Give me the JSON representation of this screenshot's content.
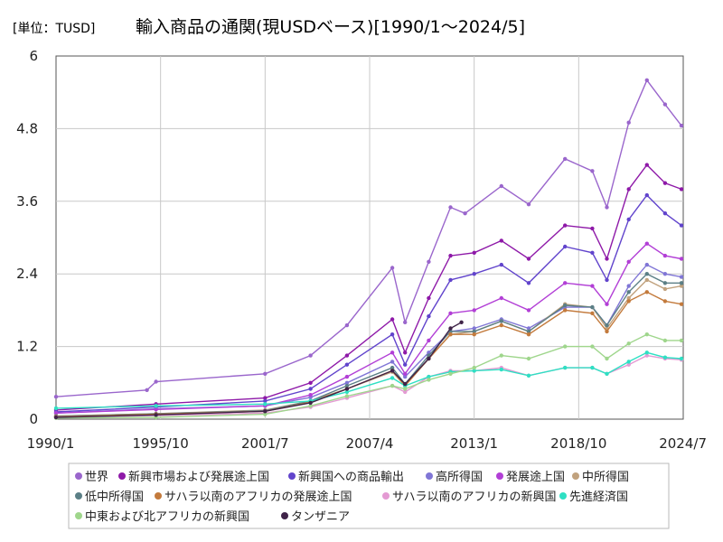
{
  "unit_label": "[単位：TUSD]",
  "chart_data": {
    "type": "line",
    "title": "輸入商品の通関(現USDベース)[1990/1～2024/5]",
    "xlabel": "",
    "ylabel": "",
    "x_range": [
      1990.0,
      2024.5
    ],
    "ylim": [
      0,
      6
    ],
    "x_ticks": [
      "1990/1",
      "1995/10",
      "2001/7",
      "2007/4",
      "2013/1",
      "2018/10",
      "2024/7"
    ],
    "y_ticks": [
      "0",
      "1.2",
      "2.4",
      "3.6",
      "4.8",
      "6"
    ],
    "grid": true,
    "legend_position": "bottom",
    "series": [
      {
        "name": "世界",
        "color": "#9a66cc",
        "points": [
          [
            1990.0,
            0.37
          ],
          [
            1995.0,
            0.48
          ],
          [
            1995.5,
            0.62
          ],
          [
            2001.5,
            0.75
          ],
          [
            2004.0,
            1.05
          ],
          [
            2006.0,
            1.55
          ],
          [
            2008.5,
            2.5
          ],
          [
            2009.2,
            1.6
          ],
          [
            2010.5,
            2.6
          ],
          [
            2011.7,
            3.5
          ],
          [
            2012.5,
            3.4
          ],
          [
            2014.5,
            3.85
          ],
          [
            2016.0,
            3.55
          ],
          [
            2018.0,
            4.3
          ],
          [
            2019.5,
            4.1
          ],
          [
            2020.3,
            3.5
          ],
          [
            2021.5,
            4.9
          ],
          [
            2022.5,
            5.6
          ],
          [
            2023.5,
            5.2
          ],
          [
            2024.4,
            4.85
          ]
        ]
      },
      {
        "name": "新興市場および発展途上国",
        "color": "#8e19a8",
        "points": [
          [
            1990.0,
            0.15
          ],
          [
            1995.5,
            0.25
          ],
          [
            2001.5,
            0.35
          ],
          [
            2004.0,
            0.6
          ],
          [
            2006.0,
            1.05
          ],
          [
            2008.5,
            1.65
          ],
          [
            2009.2,
            1.1
          ],
          [
            2010.5,
            2.0
          ],
          [
            2011.7,
            2.7
          ],
          [
            2013.0,
            2.75
          ],
          [
            2014.5,
            2.95
          ],
          [
            2016.0,
            2.65
          ],
          [
            2018.0,
            3.2
          ],
          [
            2019.5,
            3.15
          ],
          [
            2020.3,
            2.65
          ],
          [
            2021.5,
            3.8
          ],
          [
            2022.5,
            4.2
          ],
          [
            2023.5,
            3.9
          ],
          [
            2024.4,
            3.8
          ]
        ]
      },
      {
        "name": "新興国への商品輸出",
        "color": "#6144cc",
        "points": [
          [
            1990.0,
            0.12
          ],
          [
            1995.5,
            0.2
          ],
          [
            2001.5,
            0.3
          ],
          [
            2004.0,
            0.5
          ],
          [
            2006.0,
            0.9
          ],
          [
            2008.5,
            1.4
          ],
          [
            2009.2,
            0.9
          ],
          [
            2010.5,
            1.7
          ],
          [
            2011.7,
            2.3
          ],
          [
            2013.0,
            2.4
          ],
          [
            2014.5,
            2.55
          ],
          [
            2016.0,
            2.25
          ],
          [
            2018.0,
            2.85
          ],
          [
            2019.5,
            2.75
          ],
          [
            2020.3,
            2.3
          ],
          [
            2021.5,
            3.3
          ],
          [
            2022.5,
            3.7
          ],
          [
            2023.5,
            3.4
          ],
          [
            2024.4,
            3.2
          ]
        ]
      },
      {
        "name": "高所得国",
        "color": "#8076d6",
        "points": [
          [
            1990.0,
            0.1
          ],
          [
            1995.5,
            0.17
          ],
          [
            2001.5,
            0.22
          ],
          [
            2004.0,
            0.36
          ],
          [
            2006.0,
            0.6
          ],
          [
            2008.5,
            0.95
          ],
          [
            2009.2,
            0.7
          ],
          [
            2010.5,
            1.1
          ],
          [
            2011.7,
            1.45
          ],
          [
            2013.0,
            1.5
          ],
          [
            2014.5,
            1.65
          ],
          [
            2016.0,
            1.5
          ],
          [
            2018.0,
            1.85
          ],
          [
            2019.5,
            1.85
          ],
          [
            2020.3,
            1.55
          ],
          [
            2021.5,
            2.2
          ],
          [
            2022.5,
            2.55
          ],
          [
            2023.5,
            2.4
          ],
          [
            2024.4,
            2.35
          ]
        ]
      },
      {
        "name": "発展途上国",
        "color": "#b23fd6",
        "points": [
          [
            1990.0,
            0.1
          ],
          [
            1995.5,
            0.16
          ],
          [
            2001.5,
            0.22
          ],
          [
            2004.0,
            0.4
          ],
          [
            2006.0,
            0.7
          ],
          [
            2008.5,
            1.1
          ],
          [
            2009.2,
            0.75
          ],
          [
            2010.5,
            1.3
          ],
          [
            2011.7,
            1.75
          ],
          [
            2013.0,
            1.8
          ],
          [
            2014.5,
            2.0
          ],
          [
            2016.0,
            1.8
          ],
          [
            2018.0,
            2.25
          ],
          [
            2019.5,
            2.2
          ],
          [
            2020.3,
            1.9
          ],
          [
            2021.5,
            2.6
          ],
          [
            2022.5,
            2.9
          ],
          [
            2023.5,
            2.7
          ],
          [
            2024.4,
            2.65
          ]
        ]
      },
      {
        "name": "中所得国",
        "color": "#c1a27e",
        "points": [
          [
            1990.0,
            0.05
          ],
          [
            1995.5,
            0.09
          ],
          [
            2001.5,
            0.15
          ],
          [
            2004.0,
            0.3
          ],
          [
            2006.0,
            0.5
          ],
          [
            2008.5,
            0.78
          ],
          [
            2009.2,
            0.55
          ],
          [
            2010.5,
            1.0
          ],
          [
            2011.7,
            1.4
          ],
          [
            2013.0,
            1.45
          ],
          [
            2014.5,
            1.62
          ],
          [
            2016.0,
            1.45
          ],
          [
            2018.0,
            1.9
          ],
          [
            2019.5,
            1.85
          ],
          [
            2020.3,
            1.5
          ],
          [
            2021.5,
            2.0
          ],
          [
            2022.5,
            2.3
          ],
          [
            2023.5,
            2.15
          ],
          [
            2024.4,
            2.2
          ]
        ]
      },
      {
        "name": "低中所得国",
        "color": "#5b7f86",
        "points": [
          [
            1990.0,
            0.05
          ],
          [
            1995.5,
            0.09
          ],
          [
            2001.5,
            0.14
          ],
          [
            2004.0,
            0.3
          ],
          [
            2006.0,
            0.55
          ],
          [
            2008.5,
            0.85
          ],
          [
            2009.2,
            0.58
          ],
          [
            2010.5,
            1.05
          ],
          [
            2011.7,
            1.45
          ],
          [
            2013.0,
            1.45
          ],
          [
            2014.5,
            1.62
          ],
          [
            2016.0,
            1.45
          ],
          [
            2018.0,
            1.88
          ],
          [
            2019.5,
            1.85
          ],
          [
            2020.3,
            1.55
          ],
          [
            2021.5,
            2.1
          ],
          [
            2022.5,
            2.4
          ],
          [
            2023.5,
            2.25
          ],
          [
            2024.4,
            2.25
          ]
        ]
      },
      {
        "name": "サハラ以南のアフリカの発展途上国",
        "color": "#c37a3c",
        "points": [
          [
            1990.0,
            0.04
          ],
          [
            1995.5,
            0.08
          ],
          [
            2001.5,
            0.13
          ],
          [
            2004.0,
            0.28
          ],
          [
            2006.0,
            0.5
          ],
          [
            2008.5,
            0.8
          ],
          [
            2009.2,
            0.55
          ],
          [
            2010.5,
            1.0
          ],
          [
            2011.7,
            1.4
          ],
          [
            2013.0,
            1.4
          ],
          [
            2014.5,
            1.55
          ],
          [
            2016.0,
            1.4
          ],
          [
            2018.0,
            1.8
          ],
          [
            2019.5,
            1.75
          ],
          [
            2020.3,
            1.45
          ],
          [
            2021.5,
            1.95
          ],
          [
            2022.5,
            2.1
          ],
          [
            2023.5,
            1.95
          ],
          [
            2024.4,
            1.9
          ]
        ]
      },
      {
        "name": "サハラ以南のアフリカの新興国",
        "color": "#e49ad3",
        "points": [
          [
            1990.0,
            0.03
          ],
          [
            1995.5,
            0.06
          ],
          [
            2001.5,
            0.1
          ],
          [
            2004.0,
            0.2
          ],
          [
            2006.0,
            0.35
          ],
          [
            2008.5,
            0.55
          ],
          [
            2009.2,
            0.45
          ],
          [
            2010.5,
            0.7
          ],
          [
            2011.7,
            0.8
          ],
          [
            2013.0,
            0.8
          ],
          [
            2014.5,
            0.85
          ],
          [
            2016.0,
            0.72
          ],
          [
            2018.0,
            0.85
          ],
          [
            2019.5,
            0.85
          ],
          [
            2020.3,
            0.75
          ],
          [
            2021.5,
            0.9
          ],
          [
            2022.5,
            1.05
          ],
          [
            2023.5,
            1.0
          ],
          [
            2024.4,
            0.98
          ]
        ]
      },
      {
        "name": "先進経済国",
        "color": "#2ee0c3",
        "points": [
          [
            1990.0,
            0.18
          ],
          [
            1995.5,
            0.22
          ],
          [
            2001.5,
            0.25
          ],
          [
            2004.0,
            0.3
          ],
          [
            2006.0,
            0.45
          ],
          [
            2008.5,
            0.68
          ],
          [
            2009.2,
            0.55
          ],
          [
            2010.5,
            0.7
          ],
          [
            2011.7,
            0.78
          ],
          [
            2013.0,
            0.8
          ],
          [
            2014.5,
            0.82
          ],
          [
            2016.0,
            0.72
          ],
          [
            2018.0,
            0.85
          ],
          [
            2019.5,
            0.85
          ],
          [
            2020.3,
            0.75
          ],
          [
            2021.5,
            0.95
          ],
          [
            2022.5,
            1.1
          ],
          [
            2023.5,
            1.02
          ],
          [
            2024.4,
            1.0
          ]
        ]
      },
      {
        "name": "中東および北アフリカの新興国",
        "color": "#9fd68c",
        "points": [
          [
            1990.0,
            0.02
          ],
          [
            1995.5,
            0.03
          ],
          [
            2001.5,
            0.08
          ],
          [
            2004.0,
            0.22
          ],
          [
            2006.0,
            0.38
          ],
          [
            2008.5,
            0.55
          ],
          [
            2009.2,
            0.5
          ],
          [
            2010.5,
            0.65
          ],
          [
            2011.7,
            0.75
          ],
          [
            2013.0,
            0.85
          ],
          [
            2014.5,
            1.05
          ],
          [
            2016.0,
            1.0
          ],
          [
            2018.0,
            1.2
          ],
          [
            2019.5,
            1.2
          ],
          [
            2020.3,
            1.0
          ],
          [
            2021.5,
            1.25
          ],
          [
            2022.5,
            1.4
          ],
          [
            2023.5,
            1.3
          ],
          [
            2024.4,
            1.3
          ]
        ]
      },
      {
        "name": "タンザニア",
        "color": "#3f2348",
        "points": [
          [
            1990.0,
            0.03
          ],
          [
            1995.5,
            0.07
          ],
          [
            2001.5,
            0.13
          ],
          [
            2004.0,
            0.27
          ],
          [
            2006.0,
            0.5
          ],
          [
            2008.5,
            0.8
          ],
          [
            2009.2,
            0.58
          ],
          [
            2010.5,
            1.0
          ],
          [
            2011.7,
            1.5
          ],
          [
            2012.3,
            1.6
          ]
        ]
      }
    ]
  }
}
